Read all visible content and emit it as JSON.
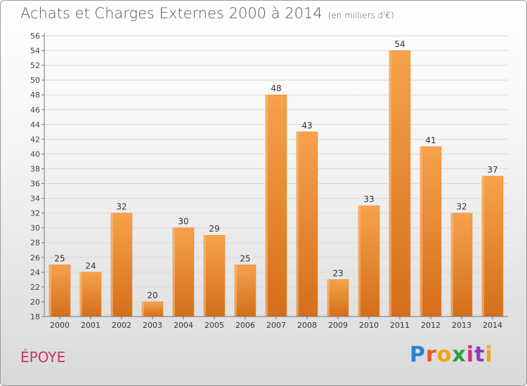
{
  "header": {
    "title": "Achats et Charges Externes 2000 à 2014",
    "unit": "(en milliers d'€)"
  },
  "footer": {
    "place": "ÉPOYE",
    "logo_letters": [
      "P",
      "r",
      "o",
      "x",
      "i",
      "t",
      "i"
    ],
    "logo_colors": [
      "#2a7fd4",
      "#e9591b",
      "#f2a60c",
      "#2a9d3a",
      "#d42a87",
      "#8c3bc4",
      "#f2a60c"
    ]
  },
  "chart_data": {
    "type": "bar",
    "title": "Achats et Charges Externes 2000 à 2014",
    "xlabel": "",
    "ylabel": "",
    "categories": [
      "2000",
      "2001",
      "2002",
      "2003",
      "2004",
      "2005",
      "2006",
      "2007",
      "2008",
      "2009",
      "2010",
      "2011",
      "2012",
      "2013",
      "2014"
    ],
    "values": [
      25,
      24,
      32,
      20,
      30,
      29,
      25,
      48,
      43,
      23,
      33,
      54,
      41,
      32,
      37
    ],
    "ylim": [
      18,
      56
    ],
    "yticks": [
      18,
      20,
      22,
      24,
      26,
      28,
      30,
      32,
      34,
      36,
      38,
      40,
      42,
      44,
      46,
      48,
      50,
      52,
      54,
      56
    ],
    "grid": true,
    "bar_color_top": "#f7a24c",
    "bar_color_bottom": "#d46e1a"
  }
}
